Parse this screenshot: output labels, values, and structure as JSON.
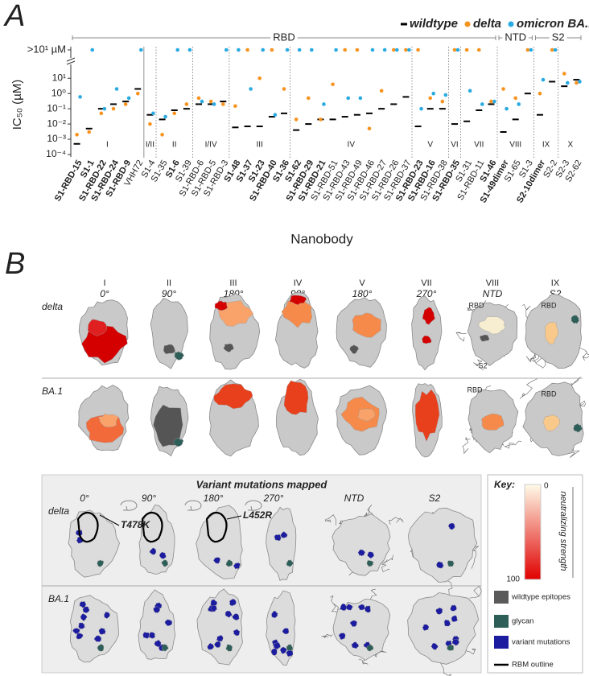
{
  "panel_a": {
    "label": "A"
  },
  "chart_data": {
    "type": "scatter",
    "y_label": "IC₅₀ (µM)",
    "x_label": "Nanobody",
    "categories": [
      "S1-RBD-15",
      "S1-1",
      "S1-RBD-22",
      "S1-RBD-24",
      "S1-RBD-9",
      "VHH72",
      "S1-4",
      "S1-35",
      "S1-6",
      "S1-39",
      "S1-RBD-6",
      "S1-RBD-5",
      "S1-RBD-3",
      "S1-48",
      "S1-37",
      "S1-23",
      "S1-RBD-40",
      "S1-36",
      "S1-62",
      "S1-RBD-29",
      "S1-RBD-21",
      "S1-RBD-51",
      "S1-RBD-43",
      "S1-RBD-49",
      "S1-RBD-46",
      "S1-RBD-27",
      "S1-RBD-26",
      "S1-RBD-37",
      "S1-RBD-23",
      "S1-RBD-16",
      "S1-RBD-38",
      "S1-RBD-35",
      "S1-31",
      "S1-RBD-11",
      "S1-46",
      "S1-49dimer",
      "S1-65",
      "S1-3",
      "S2-10dimer",
      "S2-2",
      "S2-3",
      "S2-62"
    ],
    "bold": [
      true,
      true,
      true,
      true,
      true,
      false,
      false,
      false,
      true,
      false,
      false,
      false,
      false,
      true,
      true,
      true,
      true,
      true,
      true,
      true,
      true,
      false,
      false,
      false,
      false,
      false,
      false,
      false,
      true,
      true,
      false,
      true,
      false,
      false,
      true,
      true,
      false,
      false,
      true,
      false,
      false,
      false
    ],
    "log_y": true,
    "ylim": [
      0.0001,
      50
    ],
    "yticks": [
      {
        "value": 0.0001,
        "label": "10⁻⁴"
      },
      {
        "value": 0.001,
        "label": "10⁻³"
      },
      {
        "value": 0.01,
        "label": "10⁻²"
      },
      {
        "value": 0.1,
        "label": "10⁻¹"
      },
      {
        "value": 1,
        "label": "10⁰"
      },
      {
        "value": 10,
        "label": "10¹"
      }
    ],
    "above_label": ">10¹ µM",
    "legend": "top-right",
    "groups": [
      {
        "label": "I",
        "start": 0,
        "end": 5
      },
      {
        "label": "I/II",
        "start": 6,
        "end": 6
      },
      {
        "label": "II",
        "start": 7,
        "end": 9
      },
      {
        "label": "I/IV",
        "start": 10,
        "end": 12
      },
      {
        "label": "III",
        "start": 13,
        "end": 17
      },
      {
        "label": "IV",
        "start": 18,
        "end": 27
      },
      {
        "label": "V",
        "start": 28,
        "end": 30
      },
      {
        "label": "VI",
        "start": 31,
        "end": 31
      },
      {
        "label": "VII",
        "start": 32,
        "end": 34
      },
      {
        "label": "VIII",
        "start": 35,
        "end": 37
      },
      {
        "label": "IX",
        "start": 38,
        "end": 39
      },
      {
        "label": "X",
        "start": 40,
        "end": 41
      }
    ],
    "regions": [
      {
        "label": "RBD",
        "start": 0,
        "end": 34
      },
      {
        "label": "NTD",
        "start": 35,
        "end": 37
      },
      {
        "label": "S2",
        "start": 38,
        "end": 41
      }
    ],
    "series": [
      {
        "name": "wildtype",
        "color": "#000000",
        "marker": "dash",
        "values": [
          0.0005,
          0.005,
          0.1,
          0.2,
          0.3,
          2,
          0.04,
          0.02,
          0.08,
          0.1,
          0.2,
          0.2,
          0.3,
          0.006,
          0.007,
          0.007,
          0.03,
          0.05,
          0.004,
          0.01,
          0.02,
          0.02,
          0.03,
          0.04,
          0.05,
          0.1,
          0.2,
          0.6,
          0.007,
          0.1,
          0.1,
          0.01,
          0.015,
          0.08,
          0.2,
          0.003,
          0.02,
          1,
          0.04,
          6,
          3,
          8
        ]
      },
      {
        "name": "delta",
        "color": "#f7931e",
        "marker": "dot",
        "values": [
          0.002,
          0.003,
          0.05,
          0.1,
          0.2,
          1,
          0.01,
          0.002,
          0.05,
          0.2,
          0.5,
          0.3,
          0.2,
          0.15,
          null,
          10,
          null,
          2,
          0.02,
          0.5,
          0.02,
          4,
          null,
          null,
          0.005,
          1.5,
          null,
          null,
          null,
          0.5,
          0.3,
          null,
          null,
          null,
          0.3,
          2,
          0.5,
          null,
          1,
          null,
          20,
          5
        ],
        "above": [
          false,
          false,
          false,
          false,
          false,
          false,
          false,
          false,
          false,
          false,
          false,
          false,
          false,
          false,
          true,
          false,
          true,
          false,
          false,
          false,
          false,
          false,
          true,
          true,
          false,
          false,
          true,
          true,
          true,
          false,
          false,
          true,
          true,
          true,
          false,
          false,
          false,
          true,
          false,
          true,
          false,
          false
        ]
      },
      {
        "name": "omicron BA.1",
        "color": "#29abe2",
        "marker": "dot",
        "values": [
          0.6,
          null,
          0.1,
          2,
          0.5,
          null,
          0.05,
          0.03,
          null,
          null,
          0.3,
          0.2,
          null,
          null,
          2,
          null,
          0.04,
          null,
          null,
          null,
          0.2,
          null,
          0.5,
          0.5,
          null,
          null,
          null,
          null,
          0.1,
          1,
          0.8,
          null,
          1.5,
          0.2,
          0.3,
          0.1,
          0.2,
          null,
          8,
          null,
          5,
          6
        ],
        "above": [
          false,
          true,
          false,
          false,
          false,
          true,
          false,
          false,
          true,
          true,
          false,
          false,
          true,
          true,
          false,
          true,
          false,
          true,
          true,
          true,
          false,
          true,
          false,
          false,
          true,
          true,
          true,
          true,
          false,
          false,
          false,
          true,
          false,
          false,
          false,
          false,
          false,
          true,
          false,
          true,
          false,
          false
        ]
      }
    ]
  },
  "panel_b": {
    "label": "B",
    "columns": [
      {
        "epitope": "I",
        "view": "0°"
      },
      {
        "epitope": "II",
        "view": "90°"
      },
      {
        "epitope": "III",
        "view": "180°"
      },
      {
        "epitope": "IV",
        "view": "90°"
      },
      {
        "epitope": "V",
        "view": "180°"
      },
      {
        "epitope": "VII",
        "view": "270°"
      },
      {
        "epitope": "VIII",
        "view": "NTD"
      },
      {
        "epitope": "IX",
        "view": "S2"
      }
    ],
    "rows": [
      "delta",
      "BA.1"
    ],
    "inset_labels": [
      "RBD",
      "S2",
      "RBD",
      "RBD",
      "RBD"
    ],
    "mutations": {
      "title": "Variant mutations mapped",
      "views": [
        "0°",
        "90°",
        "180°",
        "270°",
        "NTD",
        "S2"
      ],
      "rows": [
        "delta",
        "BA.1"
      ],
      "annotations": [
        "T478K",
        "L452R"
      ]
    },
    "key": {
      "title": "Key:",
      "min": 0,
      "max": 100,
      "scale_label": "neutralizing strength",
      "gradient": [
        "#fffbe8",
        "#e00000"
      ],
      "items": [
        {
          "label": "wildtype epitopes",
          "color": "#5a5a5a"
        },
        {
          "label": "glycan",
          "color": "#2e5e58"
        },
        {
          "label": "variant mutations",
          "color": "#1c1ca0"
        },
        {
          "label": "RBM outline",
          "color": "#000000"
        }
      ]
    }
  }
}
